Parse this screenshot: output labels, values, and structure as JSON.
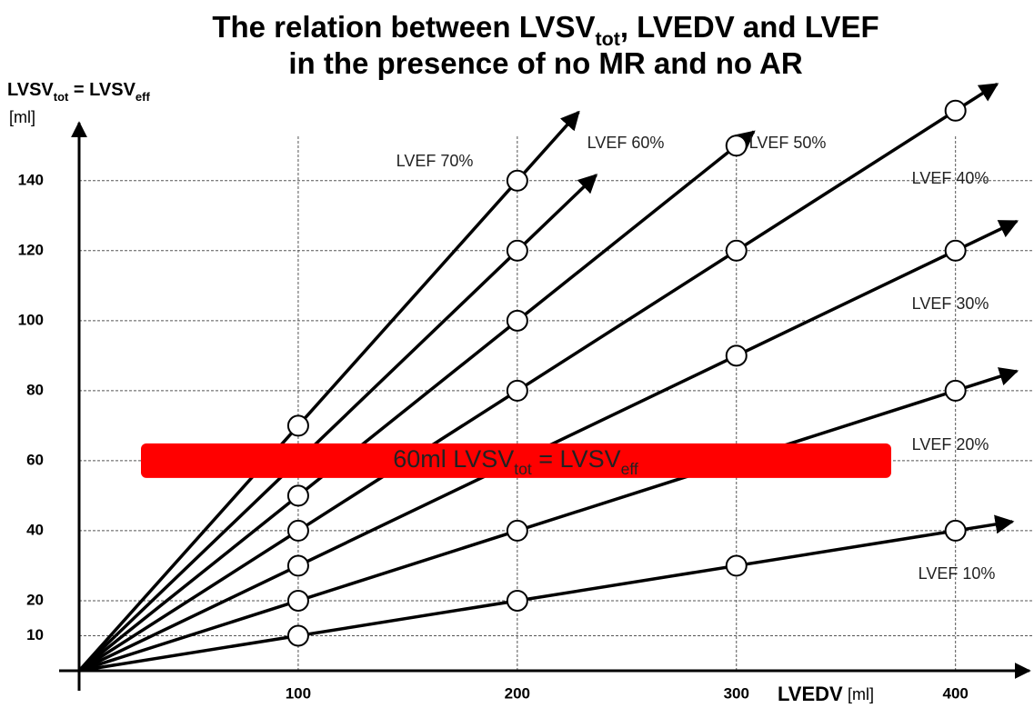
{
  "chart_data": {
    "type": "line",
    "title_lines": [
      [
        "The relation between LVSV",
        "tot",
        ", LVEDV and LVEF"
      ],
      [
        "in the presence of no MR and no AR"
      ]
    ],
    "y_label": [
      "LVSV",
      "tot",
      " = LVSV",
      "eff"
    ],
    "y_unit": "[ml]",
    "x_label": "LVEDV",
    "x_unit": "[ml]",
    "annotation": [
      "60ml LVSV",
      "tot",
      " = LVSV",
      "eff"
    ],
    "annotation_value": 60,
    "annotation_color": "#ff0000",
    "xlim": [
      0,
      435
    ],
    "ylim": [
      0,
      155
    ],
    "xticks": [
      100,
      200,
      300,
      400
    ],
    "yticks": [
      10,
      20,
      40,
      60,
      80,
      100,
      120,
      140
    ],
    "grid": true,
    "color": "#000000",
    "series": [
      {
        "name": "LVEF 70%",
        "x": [
          100,
          200
        ],
        "values": [
          70,
          140
        ]
      },
      {
        "name": "LVEF 60%",
        "x": [
          100,
          200
        ],
        "values": [
          60,
          120
        ]
      },
      {
        "name": "LVEF 50%",
        "x": [
          100,
          200,
          300
        ],
        "values": [
          50,
          100,
          150
        ]
      },
      {
        "name": "LVEF 40%",
        "x": [
          100,
          200,
          300,
          400
        ],
        "values": [
          40,
          80,
          120,
          160
        ]
      },
      {
        "name": "LVEF 30%",
        "x": [
          100,
          200,
          300,
          400
        ],
        "values": [
          30,
          60,
          90,
          120
        ]
      },
      {
        "name": "LVEF 20%",
        "x": [
          100,
          200,
          300,
          400
        ],
        "values": [
          20,
          40,
          60,
          80
        ]
      },
      {
        "name": "LVEF 10%",
        "x": [
          100,
          200,
          300,
          400
        ],
        "values": [
          10,
          20,
          30,
          40
        ]
      }
    ]
  }
}
